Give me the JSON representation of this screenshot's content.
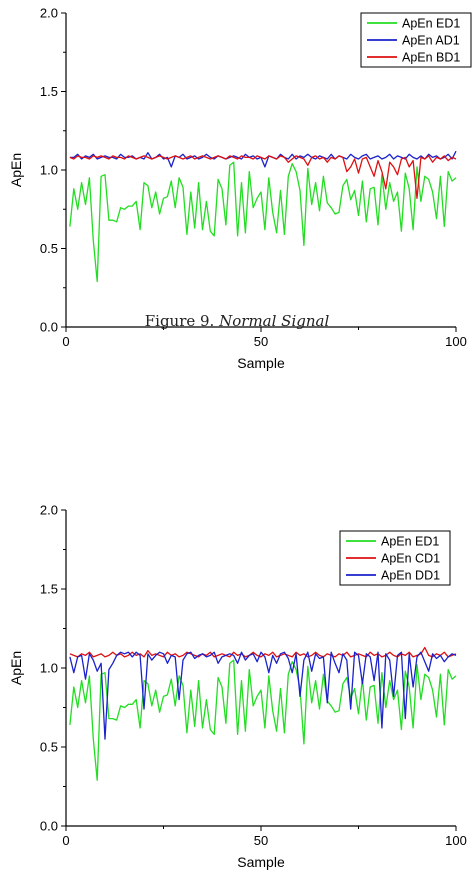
{
  "caption": {
    "label": "Figure 9.",
    "title": "Normal Signal"
  },
  "chart_data": [
    {
      "type": "line",
      "xlabel": "Sample",
      "ylabel": "ApEn",
      "xlim": [
        0,
        100
      ],
      "ylim": [
        0,
        2.0
      ],
      "xticks": [
        0,
        50,
        100
      ],
      "yticks": [
        0.0,
        0.5,
        1.0,
        1.5,
        2.0
      ],
      "legend_position": "top-right",
      "x_start": 1,
      "series": [
        {
          "name": "ApEn ED1",
          "color": "#22dd22",
          "values": [
            0.64,
            0.88,
            0.75,
            0.92,
            0.78,
            0.95,
            0.55,
            0.29,
            0.96,
            0.97,
            0.68,
            0.68,
            0.67,
            0.76,
            0.75,
            0.77,
            0.77,
            0.8,
            0.62,
            0.92,
            0.9,
            0.76,
            0.86,
            0.72,
            0.82,
            0.83,
            0.93,
            0.76,
            0.95,
            0.89,
            0.59,
            0.86,
            0.63,
            0.92,
            0.62,
            0.8,
            0.61,
            0.58,
            0.94,
            0.88,
            0.65,
            1.03,
            1.05,
            0.58,
            0.92,
            0.6,
            0.99,
            0.76,
            0.82,
            0.86,
            0.62,
            0.95,
            0.73,
            0.6,
            0.87,
            0.59,
            0.96,
            1.04,
            0.99,
            0.87,
            0.52,
            1.01,
            0.78,
            0.92,
            0.74,
            0.96,
            0.79,
            0.76,
            0.72,
            0.73,
            0.9,
            0.94,
            0.81,
            0.87,
            0.71,
            0.93,
            0.67,
            0.88,
            0.89,
            0.65,
            0.97,
            0.75,
            0.92,
            0.8,
            0.86,
            0.61,
            0.98,
            0.88,
            0.62,
            1.02,
            0.8,
            0.96,
            0.94,
            0.86,
            0.69,
            0.96,
            0.64,
            0.99,
            0.93,
            0.95
          ]
        },
        {
          "name": "ApEn AD1",
          "color": "#1a22cc",
          "values": [
            1.08,
            1.08,
            1.1,
            1.07,
            1.09,
            1.08,
            1.1,
            1.07,
            1.08,
            1.09,
            1.08,
            1.08,
            1.07,
            1.1,
            1.08,
            1.08,
            1.09,
            1.07,
            1.08,
            1.07,
            1.11,
            1.07,
            1.08,
            1.1,
            1.07,
            1.08,
            1.02,
            1.09,
            1.08,
            1.1,
            1.07,
            1.08,
            1.09,
            1.07,
            1.08,
            1.1,
            1.08,
            1.07,
            1.09,
            1.08,
            1.07,
            1.08,
            1.09,
            1.08,
            1.07,
            1.1,
            1.08,
            1.09,
            1.07,
            1.08,
            1.02,
            1.09,
            1.08,
            1.07,
            1.1,
            1.08,
            1.07,
            1.1,
            1.07,
            1.09,
            1.08,
            1.1,
            1.08,
            1.07,
            1.09,
            1.08,
            1.07,
            1.1,
            1.07,
            1.09,
            1.08,
            1.07,
            1.1,
            1.08,
            1.07,
            1.09,
            1.1,
            1.07,
            1.08,
            1.09,
            1.07,
            1.08,
            1.1,
            1.07,
            1.09,
            1.08,
            1.07,
            1.1,
            1.08,
            1.07,
            1.09,
            1.07,
            1.1,
            1.08,
            1.09,
            1.07,
            1.08,
            1.1,
            1.07,
            1.12
          ]
        },
        {
          "name": "ApEn BD1",
          "color": "#dd1111",
          "values": [
            1.08,
            1.07,
            1.09,
            1.08,
            1.08,
            1.07,
            1.09,
            1.08,
            1.09,
            1.08,
            1.07,
            1.09,
            1.08,
            1.08,
            1.07,
            1.09,
            1.08,
            1.07,
            1.08,
            1.09,
            1.08,
            1.07,
            1.08,
            1.09,
            1.08,
            1.07,
            1.08,
            1.09,
            1.08,
            1.07,
            1.08,
            1.09,
            1.07,
            1.08,
            1.09,
            1.08,
            1.07,
            1.08,
            1.09,
            1.08,
            1.07,
            1.09,
            1.08,
            1.07,
            1.09,
            1.08,
            1.08,
            1.07,
            1.09,
            1.08,
            1.07,
            1.09,
            1.08,
            1.07,
            1.09,
            1.08,
            1.05,
            1.07,
            1.09,
            1.08,
            1.07,
            1.03,
            1.08,
            1.09,
            1.07,
            1.08,
            1.05,
            1.08,
            1.07,
            1.09,
            1.08,
            0.99,
            1.02,
            1.07,
            0.98,
            1.07,
            1.08,
            1.02,
            0.96,
            1.06,
            0.99,
            0.88,
            1.05,
            1.02,
            0.97,
            1.07,
            1.08,
            1.02,
            1.06,
            0.82,
            1.08,
            1.07,
            1.09,
            1.05,
            1.08,
            1.07,
            1.09,
            1.06,
            1.08,
            1.07
          ]
        }
      ]
    },
    {
      "type": "line",
      "xlabel": "Sample",
      "ylabel": "ApEn",
      "xlim": [
        0,
        100
      ],
      "ylim": [
        0,
        2.0
      ],
      "xticks": [
        0,
        50,
        100
      ],
      "yticks": [
        0.0,
        0.5,
        1.0,
        1.5,
        2.0
      ],
      "legend_position": "top-right",
      "x_start": 1,
      "series": [
        {
          "name": "ApEn ED1",
          "color": "#22dd22",
          "values": [
            0.64,
            0.88,
            0.75,
            0.92,
            0.78,
            0.95,
            0.55,
            0.29,
            0.96,
            0.97,
            0.68,
            0.68,
            0.67,
            0.76,
            0.75,
            0.77,
            0.77,
            0.8,
            0.62,
            0.92,
            0.9,
            0.76,
            0.86,
            0.72,
            0.82,
            0.83,
            0.93,
            0.76,
            0.95,
            0.89,
            0.59,
            0.86,
            0.63,
            0.92,
            0.62,
            0.8,
            0.61,
            0.58,
            0.94,
            0.88,
            0.65,
            1.03,
            1.05,
            0.58,
            0.92,
            0.6,
            0.99,
            0.76,
            0.82,
            0.86,
            0.62,
            0.95,
            0.73,
            0.6,
            0.87,
            0.59,
            0.96,
            1.04,
            0.99,
            0.87,
            0.52,
            1.01,
            0.78,
            0.92,
            0.74,
            0.96,
            0.79,
            0.76,
            0.72,
            0.73,
            0.9,
            0.94,
            0.81,
            0.87,
            0.71,
            0.93,
            0.67,
            0.88,
            0.89,
            0.65,
            0.97,
            0.75,
            0.92,
            0.8,
            0.86,
            0.61,
            0.98,
            0.88,
            0.62,
            1.02,
            0.8,
            0.96,
            0.94,
            0.86,
            0.69,
            0.96,
            0.64,
            0.99,
            0.93,
            0.95
          ]
        },
        {
          "name": "ApEn CD1",
          "color": "#dd1111",
          "values": [
            1.09,
            1.08,
            1.07,
            1.09,
            1.08,
            1.1,
            1.07,
            1.08,
            1.09,
            1.07,
            1.08,
            1.1,
            1.08,
            1.09,
            1.07,
            1.08,
            1.1,
            1.08,
            1.09,
            1.07,
            1.11,
            1.08,
            1.09,
            1.08,
            1.07,
            1.1,
            1.08,
            1.09,
            1.07,
            1.08,
            1.1,
            1.09,
            1.08,
            1.07,
            1.09,
            1.08,
            1.1,
            1.07,
            1.08,
            1.09,
            1.08,
            1.07,
            1.1,
            1.08,
            1.09,
            1.07,
            1.08,
            1.1,
            1.08,
            1.07,
            1.09,
            1.08,
            1.1,
            1.07,
            1.08,
            1.09,
            1.08,
            1.07,
            1.1,
            1.08,
            1.09,
            1.07,
            1.08,
            1.1,
            1.08,
            1.07,
            1.09,
            1.08,
            1.07,
            1.09,
            1.08,
            1.1,
            1.07,
            1.08,
            1.09,
            1.08,
            1.07,
            1.1,
            1.08,
            1.09,
            1.07,
            1.08,
            1.1,
            1.08,
            1.07,
            1.09,
            1.08,
            1.1,
            1.07,
            1.08,
            1.09,
            1.13,
            1.08,
            1.07,
            1.09,
            1.08,
            1.1,
            1.07,
            1.08,
            1.09
          ]
        },
        {
          "name": "ApEn DD1",
          "color": "#1a22cc",
          "values": [
            1.07,
            0.97,
            1.07,
            1.08,
            0.93,
            1.09,
            1.05,
            0.98,
            1.03,
            0.55,
            0.99,
            1.03,
            1.08,
            1.1,
            1.09,
            1.1,
            1.07,
            1.1,
            1.08,
            0.74,
            1.09,
            1.05,
            1.08,
            1.1,
            1.09,
            1.03,
            1.08,
            1.07,
            0.8,
            1.05,
            1.09,
            1.1,
            1.06,
            1.08,
            1.09,
            1.07,
            1.08,
            1.1,
            1.03,
            1.07,
            1.08,
            1.09,
            1.08,
            1.03,
            1.1,
            1.05,
            1.08,
            1.09,
            1.04,
            1.1,
            1.07,
            0.97,
            1.08,
            1.03,
            1.09,
            1.1,
            1.06,
            0.97,
            1.09,
            0.82,
            1.05,
            1.1,
            0.98,
            1.09,
            1.06,
            1.07,
            0.78,
            1.1,
            1.03,
            0.97,
            1.09,
            1.05,
            0.74,
            1.1,
            1.08,
            0.9,
            1.09,
            1.07,
            0.92,
            1.1,
            0.62,
            1.09,
            1.05,
            0.82,
            1.08,
            1.1,
            0.68,
            1.09,
            0.88,
            1.07,
            1.1,
            1.04,
            0.98,
            1.09,
            1.06,
            1.08,
            1.04,
            1.07,
            1.09,
            1.08
          ]
        }
      ]
    }
  ]
}
